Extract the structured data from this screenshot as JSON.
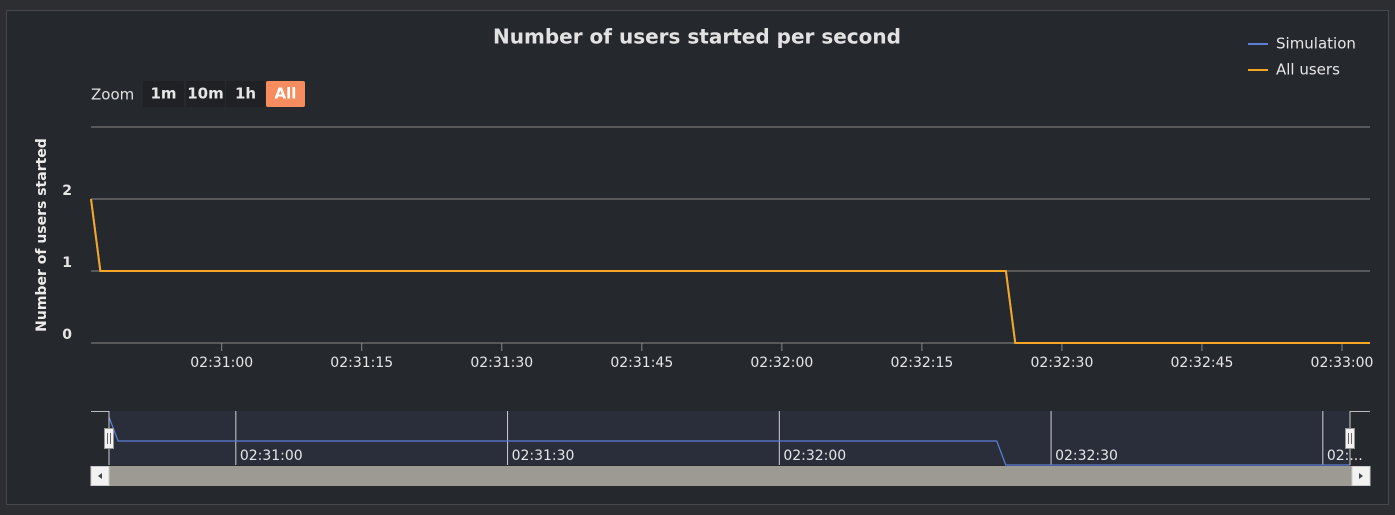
{
  "chart_data": {
    "type": "line",
    "title": "Number of users started per second",
    "y_axis_label": "Number of users started",
    "zoom": {
      "label": "Zoom",
      "buttons": [
        "1m",
        "10m",
        "1h",
        "All"
      ],
      "selected": 3
    },
    "legend": "top-right",
    "x": [
      "02:30:46",
      "02:30:47",
      "02:32:24",
      "02:32:25",
      "02:33:03"
    ],
    "series": [
      {
        "name": "Simulation",
        "color": "#5b7fd6",
        "values": [
          2,
          1,
          1,
          0,
          0
        ]
      },
      {
        "name": "All users",
        "color": "#f5a623",
        "values": [
          2,
          1,
          1,
          0,
          0
        ]
      }
    ],
    "xlim": [
      "02:30:46",
      "02:33:03"
    ],
    "xticks": [
      "02:31:00",
      "02:31:15",
      "02:31:30",
      "02:31:45",
      "02:32:00",
      "02:32:15",
      "02:32:30",
      "02:32:45",
      "02:33:00"
    ],
    "ylim": [
      0,
      3
    ],
    "yticks": [
      0,
      1,
      2
    ],
    "grid": true,
    "navigator_xticks": [
      "02:31:00",
      "02:31:30",
      "02:32:00",
      "02:32:30",
      {
        "value": "02:33:00",
        "label": "02:..."
      }
    ]
  }
}
